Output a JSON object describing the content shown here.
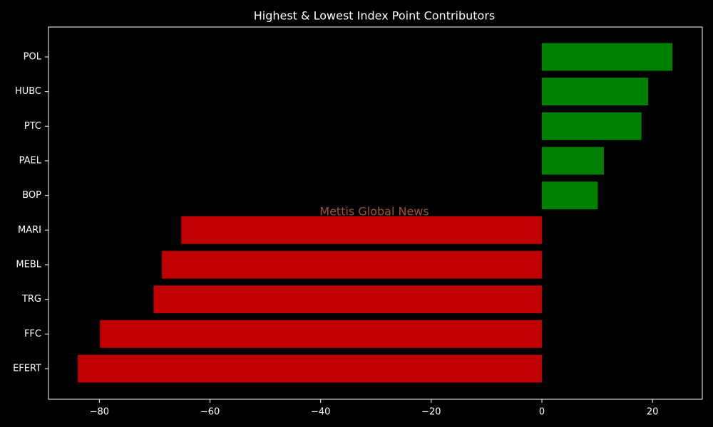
{
  "chart_data": {
    "type": "bar",
    "orientation": "horizontal",
    "title": "Highest & Lowest Index Point Contributors",
    "annotation": "Mettis Global News",
    "categories": [
      "POL",
      "HUBC",
      "PTC",
      "PAEL",
      "BOP",
      "MARI",
      "MEBL",
      "TRG",
      "FFC",
      "EFERT"
    ],
    "values": [
      23.6,
      19.2,
      18.0,
      11.2,
      10.1,
      -65.2,
      -68.7,
      -70.2,
      -79.9,
      -83.9
    ],
    "colors": [
      "#008000",
      "#008000",
      "#008000",
      "#008000",
      "#008000",
      "#c00000",
      "#c00000",
      "#c00000",
      "#c00000",
      "#c00000"
    ],
    "xlim": [
      -89.2,
      29
    ],
    "xticks": [
      {
        "value": -80,
        "label": "−80"
      },
      {
        "value": -60,
        "label": "−60"
      },
      {
        "value": -40,
        "label": "−40"
      },
      {
        "value": -20,
        "label": "−20"
      },
      0,
      20
    ],
    "grid": false
  }
}
